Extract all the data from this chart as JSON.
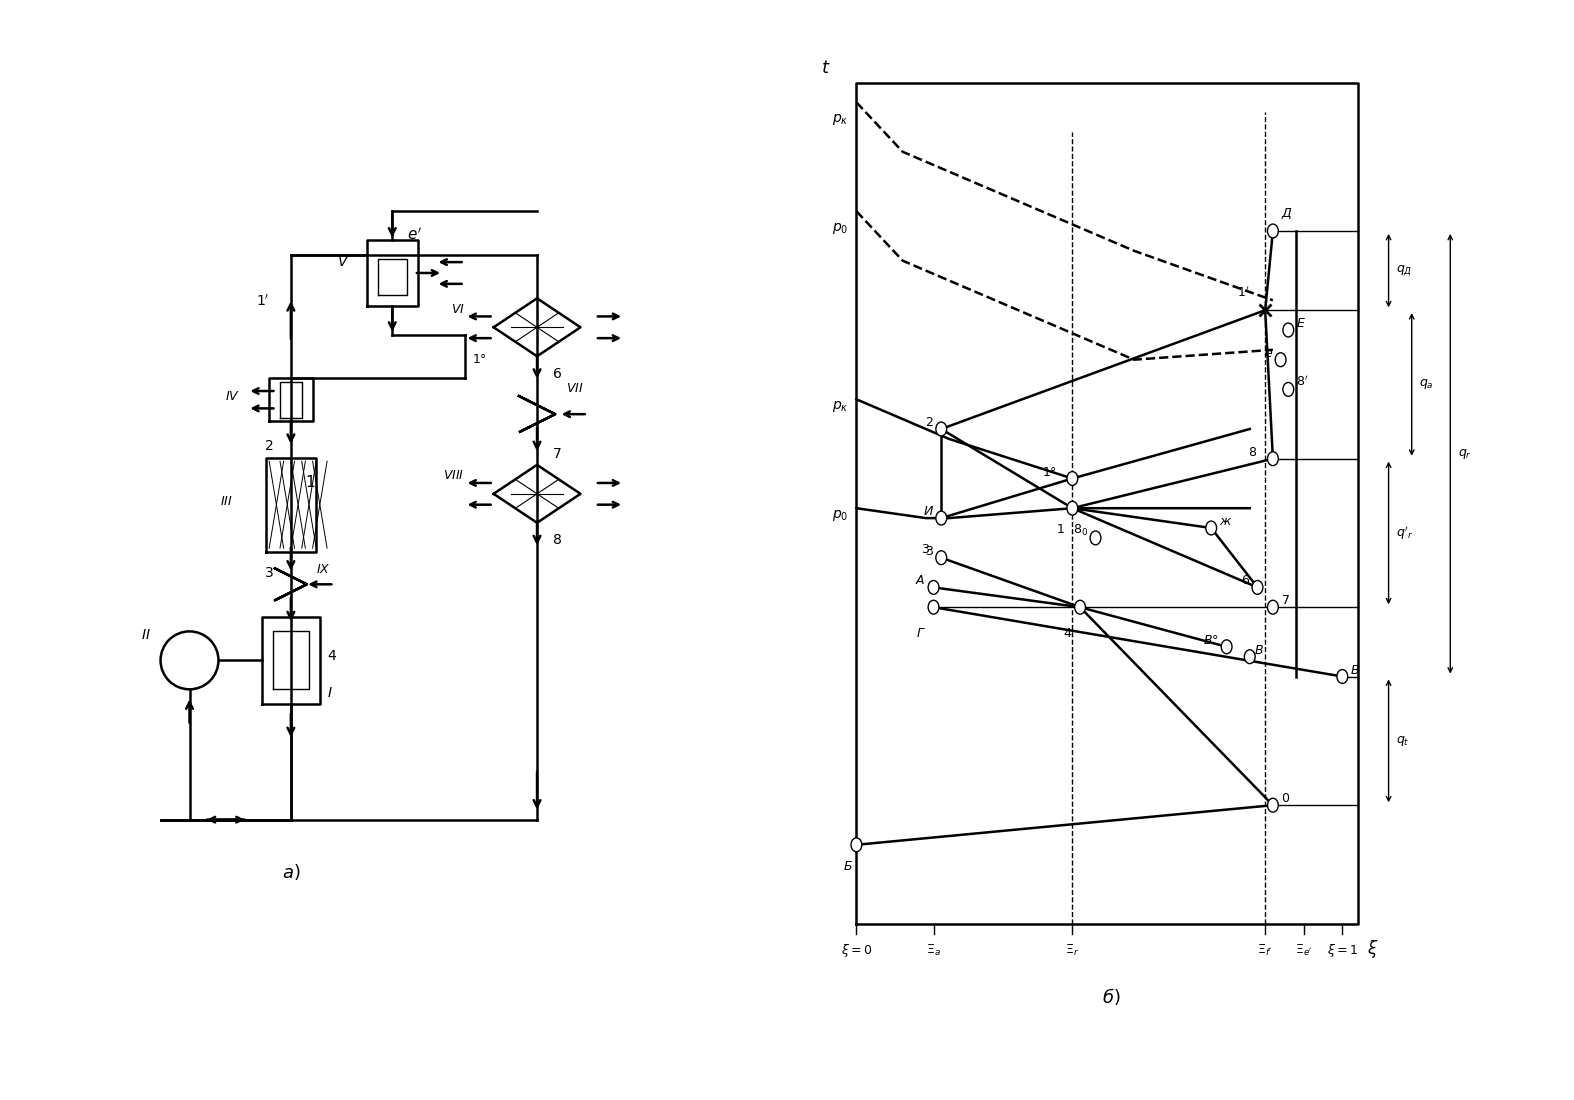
{
  "bg_color": "#ffffff",
  "lc": "#000000",
  "lw": 1.8,
  "lw_thin": 1.0,
  "fs_label": 11,
  "fs_small": 9,
  "fs_roman": 10
}
